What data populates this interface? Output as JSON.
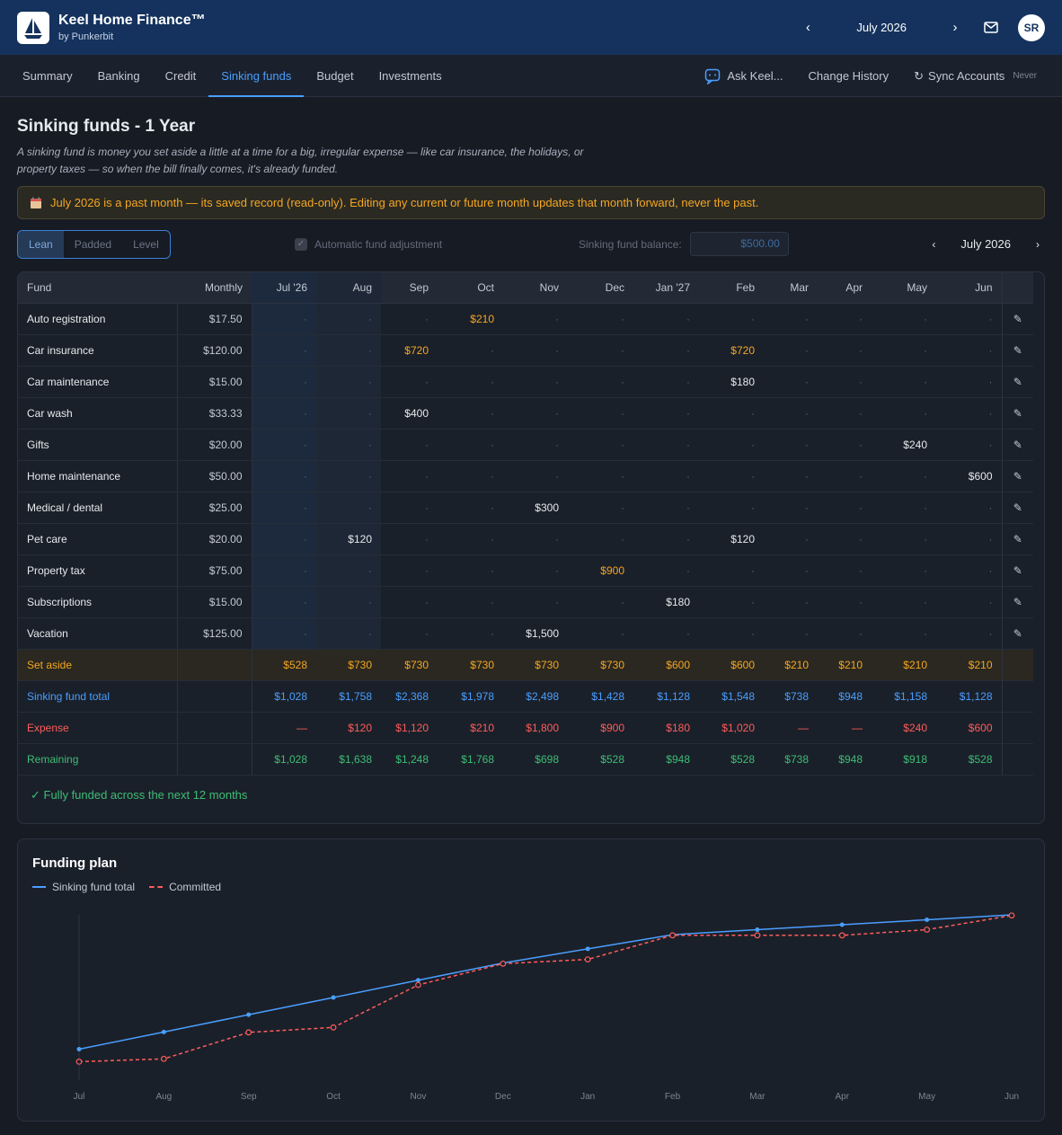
{
  "app": {
    "title": "Keel Home Finance™",
    "subtitle": "by Punkerbit",
    "month": "July 2026",
    "avatar": "SR"
  },
  "nav": {
    "tabs": [
      "Summary",
      "Banking",
      "Credit",
      "Sinking funds",
      "Budget",
      "Investments"
    ],
    "active": "Sinking funds",
    "ask": "Ask Keel...",
    "history": "Change History",
    "sync": "Sync Accounts",
    "sync_status": "Never"
  },
  "page": {
    "title": "Sinking funds - 1 Year",
    "description": "A sinking fund is money you set aside a little at a time for a big, irregular expense — like car insurance, the holidays, or property taxes — so when the bill finally comes, it's already funded.",
    "notice": "July 2026 is a past month — its saved record (read-only). Editing any current or future month updates that month forward, never the past."
  },
  "controls": {
    "modes": [
      "Lean",
      "Padded",
      "Level"
    ],
    "active_mode": "Lean",
    "auto_label": "Automatic fund adjustment",
    "auto_checked": true,
    "balance_label": "Sinking fund balance:",
    "balance_value": "$500.00",
    "month": "July 2026"
  },
  "table": {
    "headers": [
      "Fund",
      "Monthly",
      "Jul '26",
      "Aug",
      "Sep",
      "Oct",
      "Nov",
      "Dec",
      "Jan '27",
      "Feb",
      "Mar",
      "Apr",
      "May",
      "Jun"
    ],
    "rows": [
      {
        "name": "Auto registration",
        "monthly": "$17.50",
        "cells": [
          "·",
          "·",
          "·",
          "$210",
          "·",
          "·",
          "·",
          "·",
          "·",
          "·",
          "·",
          "·"
        ],
        "past": [
          false,
          false,
          false,
          true,
          false,
          false,
          false,
          false,
          false,
          false,
          false,
          false
        ]
      },
      {
        "name": "Car insurance",
        "monthly": "$120.00",
        "cells": [
          "·",
          "·",
          "$720",
          "·",
          "·",
          "·",
          "·",
          "$720",
          "·",
          "·",
          "·",
          "·"
        ],
        "past": [
          false,
          false,
          true,
          false,
          false,
          false,
          false,
          true,
          false,
          false,
          false,
          false
        ]
      },
      {
        "name": "Car maintenance",
        "monthly": "$15.00",
        "cells": [
          "·",
          "·",
          "·",
          "·",
          "·",
          "·",
          "·",
          "$180",
          "·",
          "·",
          "·",
          "·"
        ],
        "past": [
          false,
          false,
          false,
          false,
          false,
          false,
          false,
          false,
          false,
          false,
          false,
          false
        ]
      },
      {
        "name": "Car wash",
        "monthly": "$33.33",
        "cells": [
          "·",
          "·",
          "$400",
          "·",
          "·",
          "·",
          "·",
          "·",
          "·",
          "·",
          "·",
          "·"
        ],
        "past": [
          false,
          false,
          false,
          false,
          false,
          false,
          false,
          false,
          false,
          false,
          false,
          false
        ]
      },
      {
        "name": "Gifts",
        "monthly": "$20.00",
        "cells": [
          "·",
          "·",
          "·",
          "·",
          "·",
          "·",
          "·",
          "·",
          "·",
          "·",
          "$240",
          "·"
        ],
        "past": [
          false,
          false,
          false,
          false,
          false,
          false,
          false,
          false,
          false,
          false,
          false,
          false
        ]
      },
      {
        "name": "Home maintenance",
        "monthly": "$50.00",
        "cells": [
          "·",
          "·",
          "·",
          "·",
          "·",
          "·",
          "·",
          "·",
          "·",
          "·",
          "·",
          "$600"
        ],
        "past": [
          false,
          false,
          false,
          false,
          false,
          false,
          false,
          false,
          false,
          false,
          false,
          false
        ]
      },
      {
        "name": "Medical / dental",
        "monthly": "$25.00",
        "cells": [
          "·",
          "·",
          "·",
          "·",
          "$300",
          "·",
          "·",
          "·",
          "·",
          "·",
          "·",
          "·"
        ],
        "past": [
          false,
          false,
          false,
          false,
          false,
          false,
          false,
          false,
          false,
          false,
          false,
          false
        ]
      },
      {
        "name": "Pet care",
        "monthly": "$20.00",
        "cells": [
          "·",
          "$120",
          "·",
          "·",
          "·",
          "·",
          "·",
          "$120",
          "·",
          "·",
          "·",
          "·"
        ],
        "past": [
          false,
          false,
          false,
          false,
          false,
          false,
          false,
          false,
          false,
          false,
          false,
          false
        ]
      },
      {
        "name": "Property tax",
        "monthly": "$75.00",
        "cells": [
          "·",
          "·",
          "·",
          "·",
          "·",
          "$900",
          "·",
          "·",
          "·",
          "·",
          "·",
          "·"
        ],
        "past": [
          false,
          false,
          false,
          false,
          false,
          true,
          false,
          false,
          false,
          false,
          false,
          false
        ]
      },
      {
        "name": "Subscriptions",
        "monthly": "$15.00",
        "cells": [
          "·",
          "·",
          "·",
          "·",
          "·",
          "·",
          "$180",
          "·",
          "·",
          "·",
          "·",
          "·"
        ],
        "past": [
          false,
          false,
          false,
          false,
          false,
          false,
          false,
          false,
          false,
          false,
          false,
          false
        ]
      },
      {
        "name": "Vacation",
        "monthly": "$125.00",
        "cells": [
          "·",
          "·",
          "·",
          "·",
          "$1,500",
          "·",
          "·",
          "·",
          "·",
          "·",
          "·",
          "·"
        ],
        "past": [
          false,
          false,
          false,
          false,
          false,
          false,
          false,
          false,
          false,
          false,
          false,
          false
        ]
      }
    ],
    "summary": [
      {
        "name": "Set aside",
        "cls": "setaside",
        "cells": [
          "$528",
          "$730",
          "$730",
          "$730",
          "$730",
          "$730",
          "$600",
          "$600",
          "$210",
          "$210",
          "$210",
          "$210"
        ]
      },
      {
        "name": "Sinking fund total",
        "cls": "total",
        "cells": [
          "$1,028",
          "$1,758",
          "$2,368",
          "$1,978",
          "$2,498",
          "$1,428",
          "$1,128",
          "$1,548",
          "$738",
          "$948",
          "$1,158",
          "$1,128"
        ]
      },
      {
        "name": "Expense",
        "cls": "expense",
        "cells": [
          "—",
          "$120",
          "$1,120",
          "$210",
          "$1,800",
          "$900",
          "$180",
          "$1,020",
          "—",
          "—",
          "$240",
          "$600"
        ]
      },
      {
        "name": "Remaining",
        "cls": "remain",
        "cells": [
          "$1,028",
          "$1,638",
          "$1,248",
          "$1,768",
          "$698",
          "$528",
          "$948",
          "$528",
          "$738",
          "$948",
          "$918",
          "$528"
        ]
      }
    ],
    "status": "✓ Fully funded across the next 12 months"
  },
  "chart": {
    "title": "Funding plan",
    "legend": [
      "Sinking fund total",
      "Committed"
    ]
  },
  "chart_data": {
    "type": "line",
    "x": [
      "Jul",
      "Aug",
      "Sep",
      "Oct",
      "Nov",
      "Dec",
      "Jan",
      "Feb",
      "Mar",
      "Apr",
      "May",
      "Jun"
    ],
    "series": [
      {
        "name": "Sinking fund total",
        "color": "#4a9eff",
        "values": [
          528,
          1258,
          1988,
          2718,
          3448,
          4178,
          4778,
          5378,
          5588,
          5798,
          6008,
          6218
        ]
      },
      {
        "name": "Committed",
        "color": "#ff5c5c",
        "dashed": true,
        "values": [
          0,
          120,
          1240,
          1450,
          3250,
          4150,
          4330,
          5350,
          5350,
          5350,
          5590,
          6190
        ]
      }
    ],
    "ylim": [
      0,
      6218
    ]
  }
}
